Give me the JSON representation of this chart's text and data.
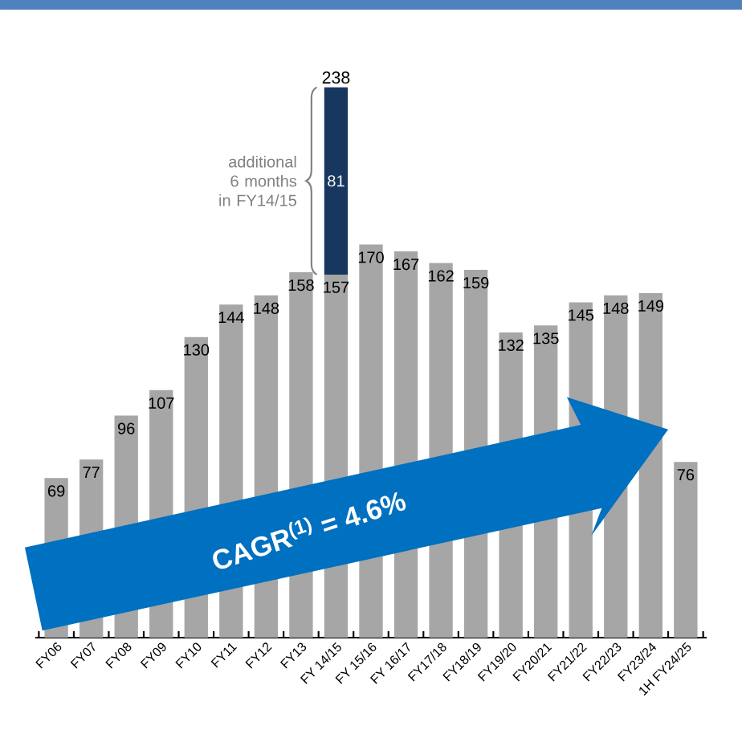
{
  "chart_data": {
    "type": "bar",
    "stacked": true,
    "categories": [
      "FY06",
      "FY07",
      "FY08",
      "FY09",
      "FY10",
      "FY11",
      "FY12",
      "FY13",
      "FY 14/15",
      "FY 15/16",
      "FY 16/17",
      "FY17/18",
      "FY18/19",
      "FY19/20",
      "FY20/21",
      "FY21/22",
      "FY22/23",
      "FY23/24",
      "1H FY24/25"
    ],
    "series": [
      {
        "color": "#a6a6a6",
        "values": [
          69,
          77,
          96,
          107,
          130,
          144,
          148,
          158,
          157,
          170,
          167,
          162,
          159,
          132,
          135,
          145,
          148,
          149,
          76
        ]
      },
      {
        "color": "#17375e",
        "values": [
          null,
          null,
          null,
          null,
          null,
          null,
          null,
          null,
          81,
          null,
          null,
          null,
          null,
          null,
          null,
          null,
          null,
          null,
          null
        ]
      }
    ],
    "totals": [
      null,
      null,
      null,
      null,
      null,
      null,
      null,
      null,
      "238",
      null,
      null,
      null,
      null,
      null,
      null,
      null,
      null,
      null,
      null
    ],
    "data_labels": true,
    "annotations": [
      "additional 6 months in FY14/15",
      "CAGR$^{(1)}$ = 4.6%"
    ]
  }
}
